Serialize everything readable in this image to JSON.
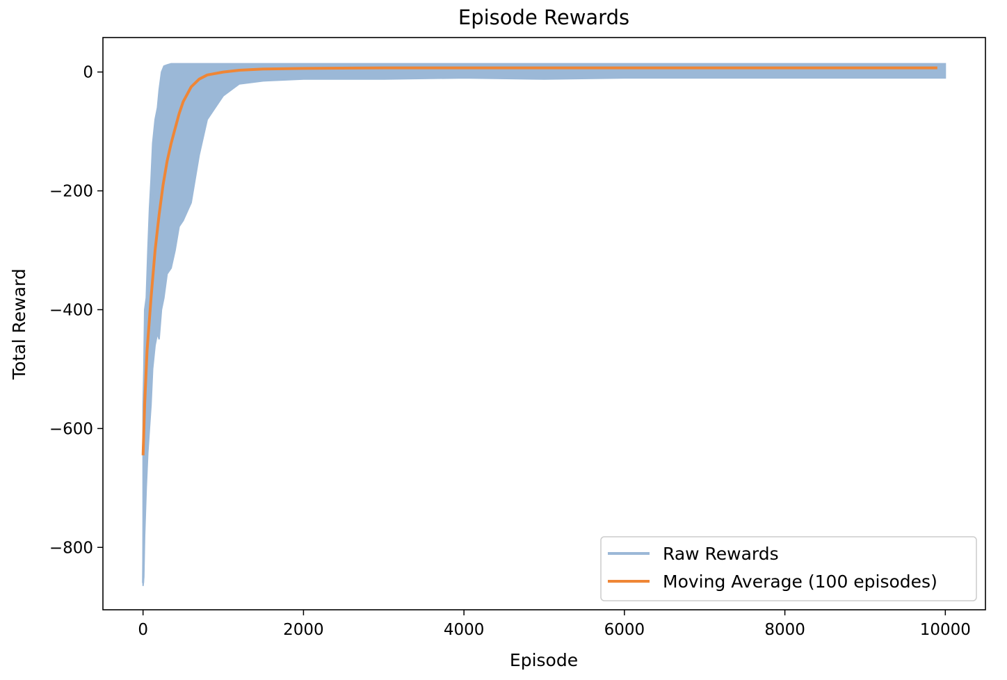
{
  "chart_data": {
    "type": "line",
    "title": "Episode Rewards",
    "xlabel": "Episode",
    "ylabel": "Total Reward",
    "xlim": [
      -500,
      10500
    ],
    "ylim": [
      -905,
      58
    ],
    "xticks": [
      0,
      2000,
      4000,
      6000,
      8000,
      10000
    ],
    "xtick_labels": [
      "0",
      "2000",
      "4000",
      "6000",
      "8000",
      "10000"
    ],
    "yticks": [
      0,
      -200,
      -400,
      -600,
      -800
    ],
    "ytick_labels": [
      "0",
      "−200",
      "−400",
      "−600",
      "−800"
    ],
    "grid": false,
    "legend_position": "lower-right",
    "series": [
      {
        "name": "Raw Rewards",
        "color": "#9bb8d7",
        "x": [
          0,
          10,
          20,
          40,
          60,
          80,
          100,
          120,
          150,
          180,
          200,
          230,
          260,
          300,
          350,
          400,
          450,
          500,
          600,
          700,
          800,
          900,
          1000,
          1200,
          1500,
          2000,
          3000,
          4000,
          5000,
          6000,
          7000,
          8000,
          9000,
          10000
        ],
        "values": [
          -860,
          -720,
          -620,
          -560,
          -420,
          -380,
          -300,
          -250,
          -180,
          -140,
          -110,
          -80,
          -60,
          -40,
          -20,
          -10,
          -5,
          0,
          5,
          8,
          5,
          8,
          9,
          10,
          10,
          10,
          10,
          10,
          10,
          10,
          10,
          10,
          10,
          10
        ],
        "envelope_min": [
          -865,
          -850,
          -780,
          -700,
          -640,
          -600,
          -560,
          -500,
          -460,
          -440,
          -450,
          -400,
          -380,
          -340,
          -330,
          -300,
          -260,
          -250,
          -220,
          -140,
          -80,
          -60,
          -40,
          -20,
          -15,
          -12,
          -12,
          -10,
          -12,
          -10,
          -10,
          -10,
          -10,
          -10
        ],
        "envelope_max": [
          -560,
          -500,
          -400,
          -380,
          -300,
          -230,
          -180,
          -120,
          -80,
          -60,
          -30,
          0,
          10,
          12,
          14,
          14,
          14,
          14,
          14,
          14,
          14,
          14,
          14,
          14,
          14,
          14,
          14,
          14,
          14,
          14,
          14,
          14,
          14,
          14
        ]
      },
      {
        "name": "Moving Average (100 episodes)",
        "color": "#ef8636",
        "x": [
          0,
          20,
          50,
          100,
          150,
          200,
          250,
          300,
          350,
          400,
          450,
          500,
          600,
          700,
          800,
          1000,
          1200,
          1500,
          2000,
          3000,
          4000,
          5000,
          6000,
          7000,
          8000,
          9000,
          9900
        ],
        "values": [
          -645,
          -560,
          -470,
          -380,
          -300,
          -240,
          -190,
          -150,
          -120,
          -95,
          -70,
          -50,
          -25,
          -12,
          -5,
          0,
          3,
          5,
          6,
          7,
          7,
          7,
          7,
          7,
          7,
          7,
          7
        ]
      }
    ]
  }
}
